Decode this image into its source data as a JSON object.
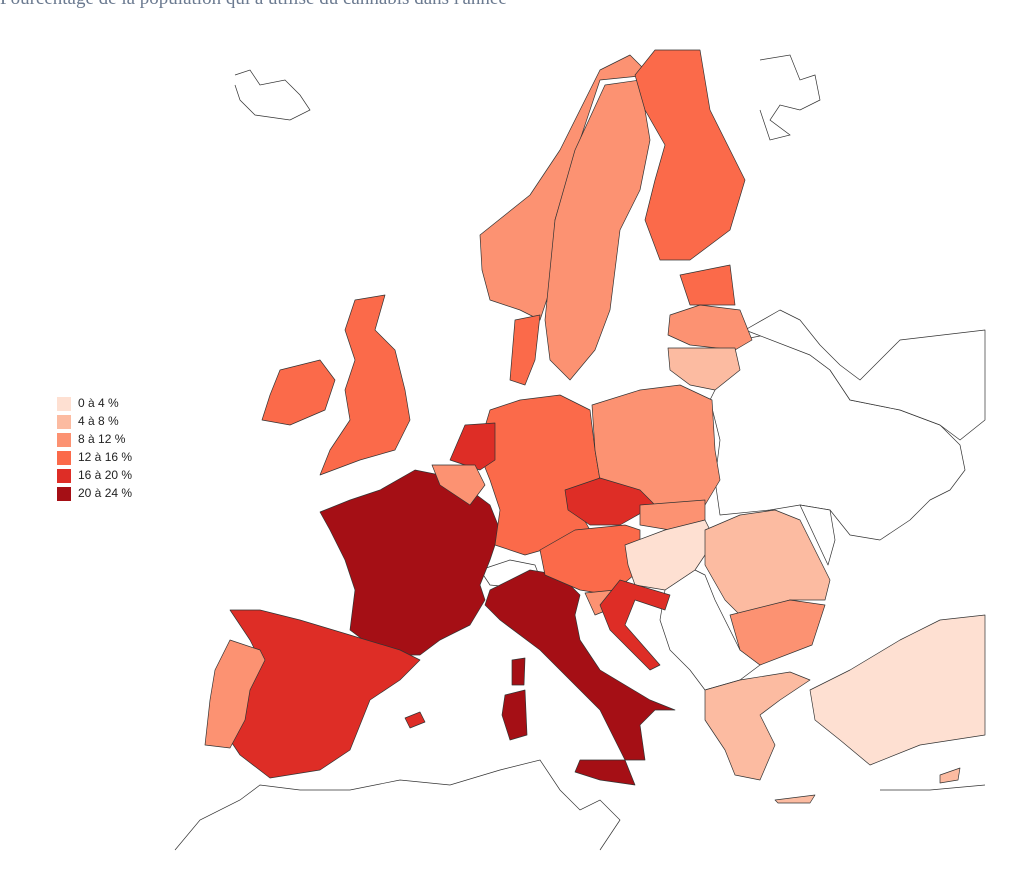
{
  "header": {
    "title": "Pourcentage de la population qui a utilisé du cannabis dans l'année"
  },
  "legend": {
    "items": [
      {
        "label": "0 à 4 %",
        "color": "#fee0d2"
      },
      {
        "label": "4 à 8 %",
        "color": "#fcbba1"
      },
      {
        "label": "8 à 12 %",
        "color": "#fc9272"
      },
      {
        "label": "12 à 16 %",
        "color": "#fb6a4a"
      },
      {
        "label": "16 à 20 %",
        "color": "#de2d26"
      },
      {
        "label": "20 à 24 %",
        "color": "#a50f15"
      }
    ]
  }
}
